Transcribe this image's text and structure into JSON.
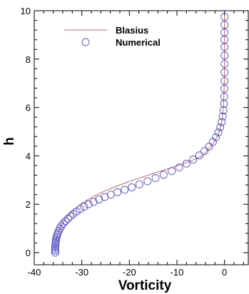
{
  "chart_data": {
    "type": "scatter",
    "xlabel": "Vorticity",
    "ylabel": "h",
    "xlim": [
      -40,
      5
    ],
    "ylim": [
      -0.5,
      10
    ],
    "x_ticks": [
      -40,
      -30,
      -20,
      -10,
      0
    ],
    "x_tick_labels": [
      "-40",
      "-30",
      "-20",
      "-10",
      "0"
    ],
    "y_ticks": [
      0,
      2,
      4,
      6,
      8,
      10
    ],
    "y_tick_labels": [
      "0",
      "2",
      "4",
      "6",
      "8",
      "10"
    ],
    "grid": false,
    "legend_position": "top-left",
    "series": [
      {
        "name": "Blasius",
        "kind": "line",
        "color": "#c06060",
        "points": [
          [
            -35.6,
            0.0
          ],
          [
            -35.6,
            0.1
          ],
          [
            -35.6,
            0.2
          ],
          [
            -35.5,
            0.3
          ],
          [
            -35.5,
            0.4
          ],
          [
            -35.4,
            0.5
          ],
          [
            -35.3,
            0.6
          ],
          [
            -35.2,
            0.7
          ],
          [
            -35.0,
            0.8
          ],
          [
            -34.8,
            0.9
          ],
          [
            -34.6,
            1.0
          ],
          [
            -34.4,
            1.1
          ],
          [
            -34.1,
            1.2
          ],
          [
            -33.8,
            1.3
          ],
          [
            -33.4,
            1.4
          ],
          [
            -33.0,
            1.5
          ],
          [
            -32.6,
            1.6
          ],
          [
            -32.1,
            1.7
          ],
          [
            -31.5,
            1.8
          ],
          [
            -30.9,
            1.9
          ],
          [
            -30.3,
            2.0
          ],
          [
            -29.5,
            2.1
          ],
          [
            -28.7,
            2.2
          ],
          [
            -27.8,
            2.3
          ],
          [
            -26.8,
            2.4
          ],
          [
            -25.7,
            2.5
          ],
          [
            -24.6,
            2.6
          ],
          [
            -23.3,
            2.7
          ],
          [
            -22.0,
            2.8
          ],
          [
            -20.6,
            2.9
          ],
          [
            -19.2,
            3.0
          ],
          [
            -17.6,
            3.1
          ],
          [
            -16.1,
            3.2
          ],
          [
            -14.5,
            3.3
          ],
          [
            -12.9,
            3.4
          ],
          [
            -11.4,
            3.5
          ],
          [
            -9.8,
            3.6
          ],
          [
            -8.4,
            3.7
          ],
          [
            -7.0,
            3.8
          ],
          [
            -5.8,
            3.9
          ],
          [
            -4.7,
            4.0
          ],
          [
            -3.7,
            4.2
          ],
          [
            -2.8,
            4.4
          ],
          [
            -2.1,
            4.6
          ],
          [
            -1.5,
            4.8
          ],
          [
            -1.1,
            5.0
          ],
          [
            -0.7,
            5.3
          ],
          [
            -0.45,
            5.6
          ],
          [
            -0.25,
            6.0
          ],
          [
            -0.12,
            6.5
          ],
          [
            -0.05,
            7.0
          ],
          [
            -0.01,
            8.0
          ],
          [
            0.0,
            9.0
          ],
          [
            0.0,
            9.8
          ]
        ]
      },
      {
        "name": "Numerical",
        "kind": "markers",
        "color": "#5050c8",
        "marker": "open-circle",
        "points": [
          [
            -35.6,
            0.0
          ],
          [
            -35.6,
            0.08
          ],
          [
            -35.6,
            0.16
          ],
          [
            -35.6,
            0.24
          ],
          [
            -35.55,
            0.32
          ],
          [
            -35.5,
            0.4
          ],
          [
            -35.45,
            0.48
          ],
          [
            -35.4,
            0.56
          ],
          [
            -35.3,
            0.64
          ],
          [
            -35.2,
            0.72
          ],
          [
            -35.05,
            0.8
          ],
          [
            -34.85,
            0.9
          ],
          [
            -34.6,
            1.0
          ],
          [
            -34.3,
            1.1
          ],
          [
            -33.9,
            1.2
          ],
          [
            -33.45,
            1.3
          ],
          [
            -32.95,
            1.4
          ],
          [
            -32.4,
            1.5
          ],
          [
            -31.8,
            1.6
          ],
          [
            -31.1,
            1.7
          ],
          [
            -30.35,
            1.8
          ],
          [
            -29.5,
            1.9
          ],
          [
            -28.55,
            2.0
          ],
          [
            -27.5,
            2.1
          ],
          [
            -26.4,
            2.2
          ],
          [
            -25.2,
            2.3
          ],
          [
            -23.9,
            2.4
          ],
          [
            -22.5,
            2.5
          ],
          [
            -21.0,
            2.6
          ],
          [
            -19.5,
            2.7
          ],
          [
            -17.9,
            2.82
          ],
          [
            -16.2,
            2.95
          ],
          [
            -14.5,
            3.08
          ],
          [
            -12.8,
            3.22
          ],
          [
            -11.1,
            3.37
          ],
          [
            -9.5,
            3.52
          ],
          [
            -8.0,
            3.68
          ],
          [
            -6.6,
            3.85
          ],
          [
            -5.3,
            4.02
          ],
          [
            -4.2,
            4.2
          ],
          [
            -3.25,
            4.38
          ],
          [
            -2.45,
            4.57
          ],
          [
            -1.8,
            4.77
          ],
          [
            -1.3,
            4.97
          ],
          [
            -0.9,
            5.18
          ],
          [
            -0.6,
            5.4
          ],
          [
            -0.38,
            5.63
          ],
          [
            -0.22,
            5.88
          ],
          [
            -0.12,
            6.15
          ],
          [
            -0.06,
            6.45
          ],
          [
            -0.03,
            6.78
          ],
          [
            -0.01,
            7.1
          ],
          [
            0.0,
            7.45
          ],
          [
            0.0,
            7.8
          ],
          [
            0.0,
            8.15
          ],
          [
            0.0,
            8.5
          ],
          [
            0.0,
            8.8
          ],
          [
            0.0,
            9.1
          ],
          [
            0.0,
            9.42
          ],
          [
            0.0,
            9.75
          ]
        ]
      }
    ]
  }
}
